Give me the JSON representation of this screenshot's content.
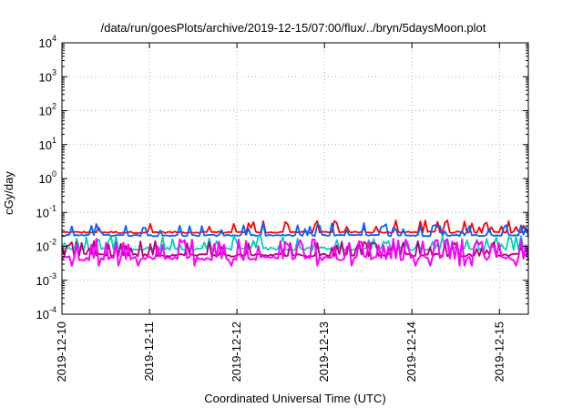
{
  "chart_data": {
    "type": "line",
    "title": "/data/run/goesPlots/archive/2019-12-15/07:00/flux/../bryn/5daysMoon.plot",
    "xlabel": "Coordinated Universal Time (UTC)",
    "ylabel": "cGy/day",
    "yscale": "log",
    "ylim": [
      0.0001,
      10000
    ],
    "xlim_days": [
      0,
      5.33
    ],
    "grid": true,
    "y_ticks": [
      {
        "base": "10",
        "exp": "-4",
        "value": 0.0001
      },
      {
        "base": "10",
        "exp": "-3",
        "value": 0.001
      },
      {
        "base": "10",
        "exp": "-2",
        "value": 0.01
      },
      {
        "base": "10",
        "exp": "-1",
        "value": 0.1
      },
      {
        "base": "10",
        "exp": "0",
        "value": 1
      },
      {
        "base": "10",
        "exp": "1",
        "value": 10
      },
      {
        "base": "10",
        "exp": "2",
        "value": 100
      },
      {
        "base": "10",
        "exp": "3",
        "value": 1000
      },
      {
        "base": "10",
        "exp": "4",
        "value": 10000
      }
    ],
    "x_ticks": [
      "2019-12-10",
      "2019-12-11",
      "2019-12-12",
      "2019-12-13",
      "2019-12-14",
      "2019-12-15"
    ],
    "series": [
      {
        "color": "#ff0000",
        "base": 0.026,
        "spike": 0.045,
        "noise": 0.12,
        "spike_prob": 0.18
      },
      {
        "color": "#0064ff",
        "base": 0.021,
        "spike": 0.038,
        "noise": 0.1,
        "spike_prob": 0.2
      },
      {
        "color": "#00d2b4",
        "base": 0.0085,
        "spike": 0.016,
        "noise": 0.18,
        "spike_prob": 0.25
      },
      {
        "color": "#b4007a",
        "base": 0.0055,
        "spike": 0.011,
        "noise": 0.2,
        "spike_prob": 0.25
      },
      {
        "color": "#ff00ff",
        "base": 0.0045,
        "spike": 0.013,
        "noise": 0.3,
        "spike_prob": 0.32
      }
    ]
  }
}
